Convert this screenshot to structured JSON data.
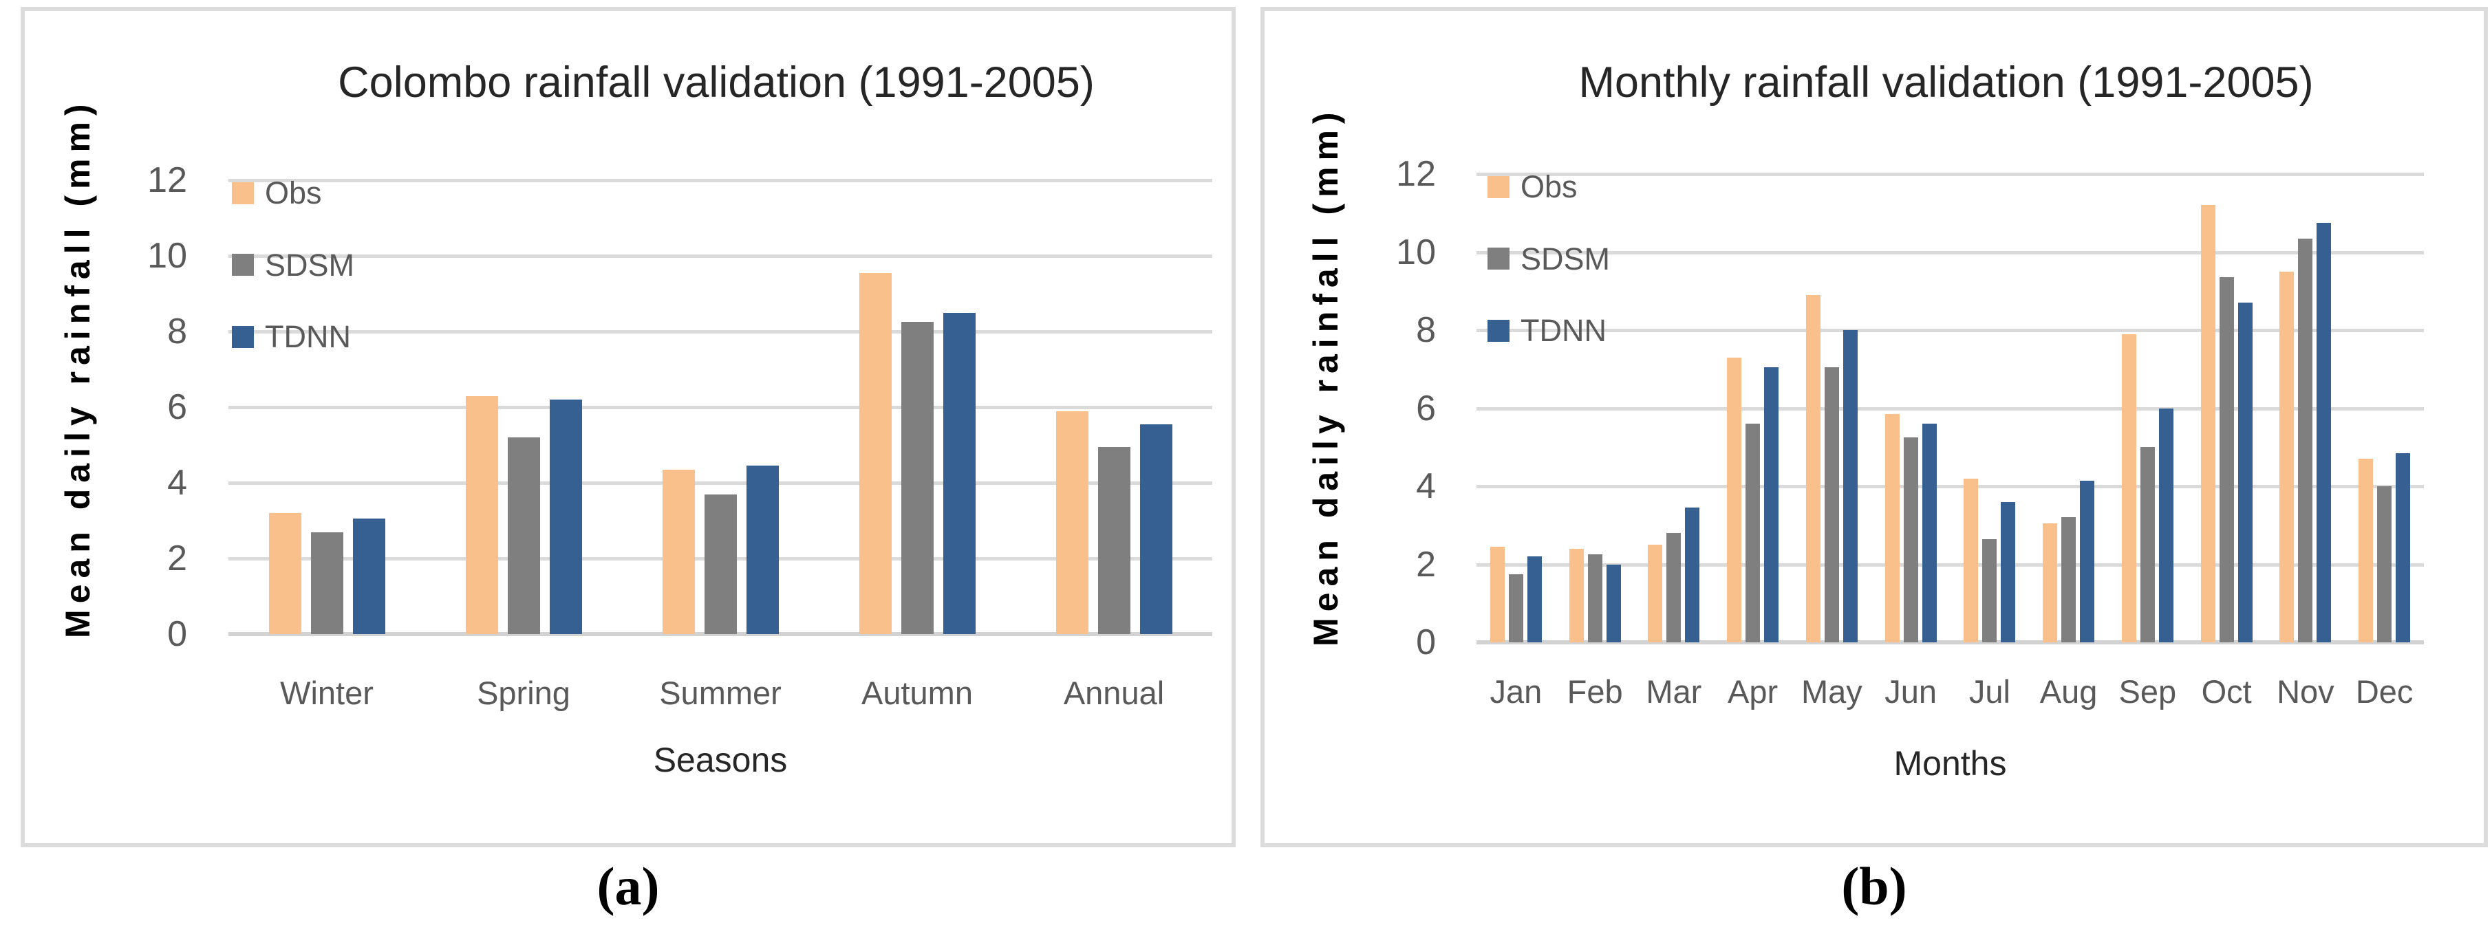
{
  "figure": {
    "captions": [
      "(a)",
      "(b)"
    ],
    "background_color": "#ffffff",
    "panel_border_color": "#dcdcdc"
  },
  "colors": {
    "obs": "#f9c08c",
    "sdsm": "#7f7f7f",
    "tdnn": "#366092",
    "gridline": "#dadada",
    "tick_text": "#595959",
    "title_text": "#262626"
  },
  "chart_data": [
    {
      "type": "bar",
      "title": "Colombo rainfall validation (1991-2005)",
      "xlabel": "Seasons",
      "ylabel": "Mean daily rainfall (mm)",
      "ylim": [
        0,
        12
      ],
      "yticks": [
        0,
        2,
        4,
        6,
        8,
        10,
        12
      ],
      "grid": true,
      "legend_position": "inside-top-left-vertical",
      "categories": [
        "Winter",
        "Spring",
        "Summer",
        "Autumn",
        "Annual"
      ],
      "series": [
        {
          "name": "Obs",
          "color": "#f9c08c",
          "values": [
            3.2,
            6.3,
            4.35,
            9.55,
            5.9
          ]
        },
        {
          "name": "SDSM",
          "color": "#7f7f7f",
          "values": [
            2.7,
            5.2,
            3.7,
            8.25,
            4.95
          ]
        },
        {
          "name": "TDNN",
          "color": "#366092",
          "values": [
            3.05,
            6.2,
            4.45,
            8.5,
            5.55
          ]
        }
      ],
      "caption": "(a)"
    },
    {
      "type": "bar",
      "title": "Monthly rainfall validation (1991-2005)",
      "xlabel": "Months",
      "ylabel": "Mean daily rainfall (mm)",
      "ylim": [
        0,
        12
      ],
      "yticks": [
        0,
        2,
        4,
        6,
        8,
        10,
        12
      ],
      "grid": true,
      "legend_position": "inside-top-left-vertical",
      "categories": [
        "Jan",
        "Feb",
        "Mar",
        "Apr",
        "May",
        "Jun",
        "Jul",
        "Aug",
        "Sep",
        "Oct",
        "Nov",
        "Dec"
      ],
      "series": [
        {
          "name": "Obs",
          "color": "#f9c08c",
          "values": [
            2.45,
            2.4,
            2.5,
            7.3,
            8.9,
            5.85,
            4.2,
            3.05,
            7.9,
            11.2,
            9.5,
            4.7
          ]
        },
        {
          "name": "SDSM",
          "color": "#7f7f7f",
          "values": [
            1.75,
            2.25,
            2.8,
            5.6,
            7.05,
            5.25,
            2.65,
            3.2,
            5.0,
            9.35,
            10.35,
            4.0
          ]
        },
        {
          "name": "TDNN",
          "color": "#366092",
          "values": [
            2.2,
            2.0,
            3.45,
            7.05,
            8.0,
            5.6,
            3.6,
            4.15,
            6.0,
            8.7,
            10.75,
            4.85
          ]
        }
      ],
      "caption": "(b)"
    }
  ]
}
